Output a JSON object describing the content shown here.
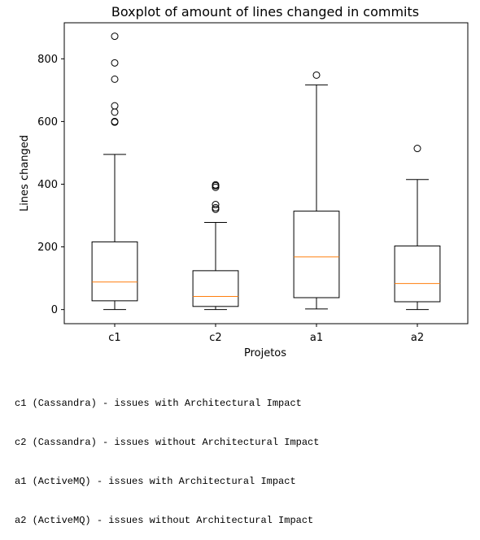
{
  "chart_data": {
    "type": "boxplot",
    "title": "Boxplot of amount of lines changed in commits",
    "xlabel": "Projetos",
    "ylabel": "Lines changed",
    "ylim": [
      -45,
      915
    ],
    "yticks": [
      0,
      200,
      400,
      600,
      800
    ],
    "categories": [
      "c1",
      "c2",
      "a1",
      "a2"
    ],
    "boxes": [
      {
        "category": "c1",
        "whisker_low": 0,
        "q1": 28,
        "median": 88,
        "q3": 216,
        "whisker_high": 495,
        "outliers": [
          598,
          600,
          630,
          650,
          735,
          787,
          872
        ]
      },
      {
        "category": "c2",
        "whisker_low": 0,
        "q1": 10,
        "median": 42,
        "q3": 124,
        "whisker_high": 278,
        "outliers": [
          320,
          325,
          335,
          390,
          395,
          398
        ]
      },
      {
        "category": "a1",
        "whisker_low": 2,
        "q1": 38,
        "median": 168,
        "q3": 314,
        "whisker_high": 717,
        "outliers": [
          748
        ]
      },
      {
        "category": "a2",
        "whisker_low": 0,
        "q1": 25,
        "median": 83,
        "q3": 203,
        "whisker_high": 415,
        "outliers": [
          514
        ]
      }
    ],
    "colors": {
      "box": "#000000",
      "median": "#ff7f0e",
      "outlier": "#000000"
    },
    "grid": false
  },
  "notes": [
    "c1 (Cassandra) - issues with Architectural Impact",
    "c2 (Cassandra) - issues without Architectural Impact",
    "a1 (ActiveMQ) - issues with Architectural Impact",
    "a2 (ActiveMQ) - issues without Architectural Impact"
  ]
}
